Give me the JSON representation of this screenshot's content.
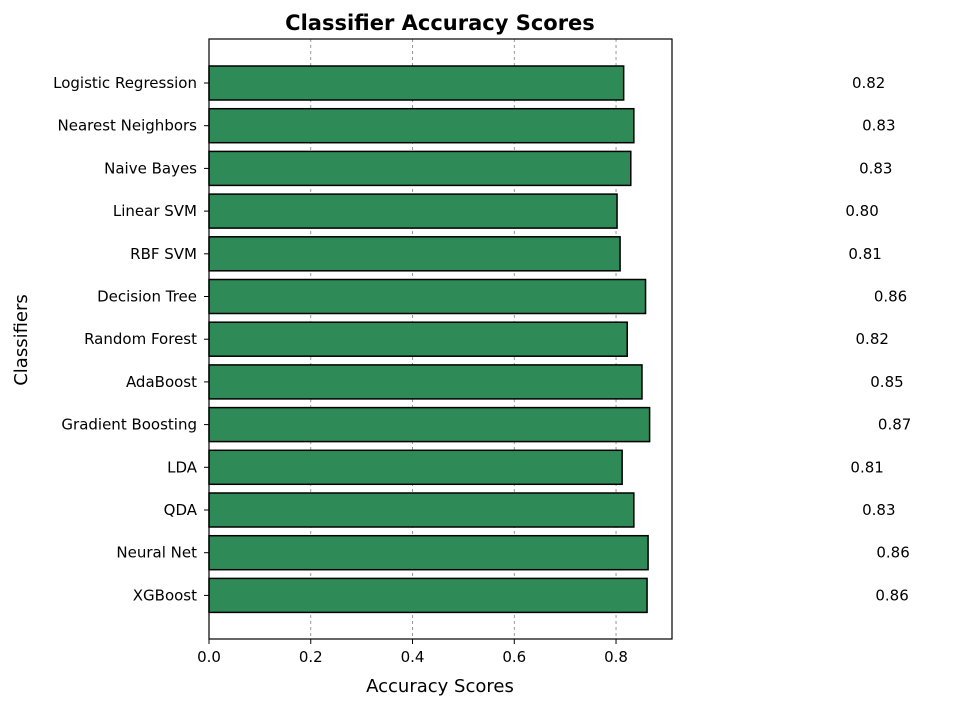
{
  "chart_data": {
    "type": "bar",
    "orientation": "horizontal",
    "title": "Classifier Accuracy Scores",
    "xlabel": "Accuracy Scores",
    "ylabel": "Classifiers",
    "xlim": [
      0,
      0.91
    ],
    "xticks": [
      0.0,
      0.2,
      0.4,
      0.6,
      0.8
    ],
    "xtick_labels": [
      "0.0",
      "0.2",
      "0.4",
      "0.6",
      "0.8"
    ],
    "grid": "x-axis dashed",
    "categories": [
      "Logistic Regression",
      "Nearest Neighbors",
      "Naive Bayes",
      "Linear SVM",
      "RBF SVM",
      "Decision Tree",
      "Random Forest",
      "AdaBoost",
      "Gradient Boosting",
      "LDA",
      "QDA",
      "Neural Net",
      "XGBoost"
    ],
    "values": [
      0.815,
      0.835,
      0.829,
      0.802,
      0.808,
      0.858,
      0.822,
      0.851,
      0.866,
      0.812,
      0.835,
      0.863,
      0.861
    ],
    "value_labels": [
      "0.82",
      "0.83",
      "0.83",
      "0.80",
      "0.81",
      "0.86",
      "0.82",
      "0.85",
      "0.87",
      "0.81",
      "0.83",
      "0.86",
      "0.86"
    ],
    "colors": {
      "bar_fill": "#2e8b57",
      "bar_edge": "#000000",
      "grid": "#808080"
    }
  }
}
